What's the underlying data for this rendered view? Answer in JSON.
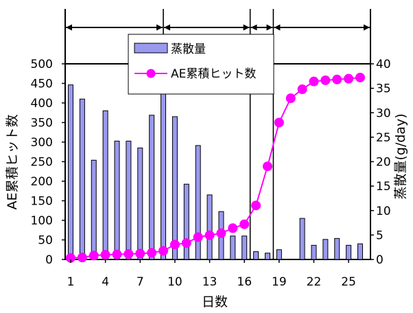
{
  "chart_data": {
    "type": "bar+line",
    "xlabel": "日数",
    "ylabel_left": "AE累積ヒット数",
    "ylabel_right": "蒸散量(g/day)",
    "ylim_left": [
      0,
      500
    ],
    "ylim_right": [
      0,
      40
    ],
    "yticks_left": [
      "0",
      "50",
      "100",
      "150",
      "200",
      "250",
      "300",
      "350",
      "400",
      "450",
      "500"
    ],
    "yticks_right": [
      "0",
      "5",
      "10",
      "15",
      "20",
      "25",
      "30",
      "35",
      "40"
    ],
    "xticks": [
      "1",
      "4",
      "7",
      "10",
      "13",
      "16",
      "19",
      "22",
      "25"
    ],
    "days": [
      1,
      2,
      3,
      4,
      5,
      6,
      7,
      8,
      9,
      10,
      11,
      12,
      13,
      14,
      15,
      16,
      17,
      18,
      19,
      20,
      21,
      22,
      23,
      24,
      25,
      26
    ],
    "series": [
      {
        "name": "AE累積ヒット数",
        "kind": "line",
        "axis": "left",
        "color": "#ff00ff",
        "values": [
          4,
          5,
          10,
          12,
          13,
          14,
          15,
          17,
          22,
          38,
          42,
          57,
          62,
          67,
          80,
          90,
          138,
          238,
          350,
          412,
          435,
          455,
          458,
          460,
          462,
          465
        ]
      },
      {
        "name": "蒸散量",
        "kind": "bar",
        "axis": "right",
        "color": "#9999ee",
        "values": [
          35.7,
          32.8,
          20.3,
          30.4,
          24.2,
          24.2,
          22.8,
          29.5,
          34.5,
          29.2,
          15.4,
          23.3,
          13.2,
          9.8,
          4.8,
          4.8,
          1.6,
          1.3,
          2.0,
          null,
          8.4,
          2.9,
          4.1,
          4.3,
          2.9,
          3.2
        ]
      }
    ],
    "legend_position": "top-center",
    "period_dividers_day": [
      9,
      16.5,
      18.5
    ],
    "period_arrows": [
      [
        1,
        9
      ],
      [
        9,
        16.5
      ],
      [
        16.5,
        18.5
      ],
      [
        18.5,
        26
      ]
    ],
    "grid": false
  }
}
